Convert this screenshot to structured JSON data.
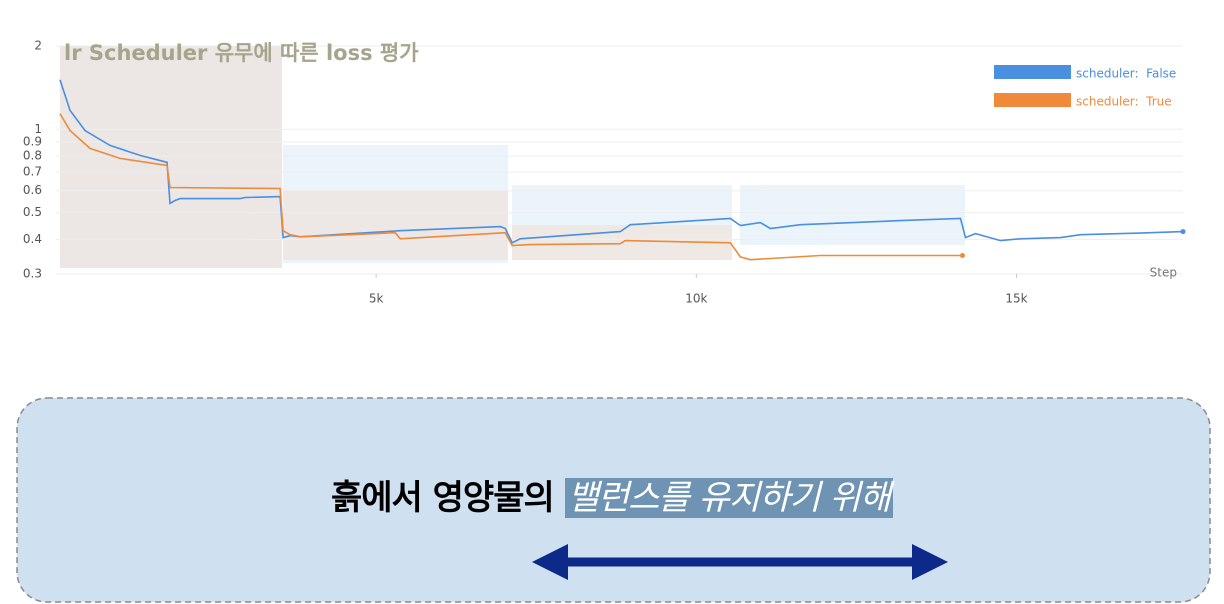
{
  "chart_data": {
    "type": "line",
    "title": "lr Scheduler 유무에 따른 loss 평가",
    "x_label": "Step",
    "xlim": [
      0,
      17600
    ],
    "xticks": [
      {
        "value": 5000,
        "label": "5k"
      },
      {
        "value": 10000,
        "label": "10k"
      },
      {
        "value": 15000,
        "label": "15k"
      }
    ],
    "ylim": [
      0.3,
      2
    ],
    "yticks": [
      0.3,
      0.4,
      0.5,
      0.6,
      0.7,
      0.8,
      0.9,
      1,
      2
    ],
    "log_y": true,
    "grid": true,
    "legend": "top-right",
    "series": [
      {
        "name": "scheduler:  False",
        "color": "#4a8fe0",
        "x": [
          63,
          219,
          453,
          844,
          1313,
          1734,
          1781,
          1859,
          1938,
          2875,
          2953,
          3500,
          3547,
          3656,
          3813,
          5375,
          6938,
          7016,
          7125,
          7250,
          8813,
          8969,
          10531,
          10688,
          11000,
          11156,
          11625,
          13188,
          14125,
          14203,
          14359,
          14750,
          15063,
          15688,
          16000,
          17094,
          17600
        ],
        "values": [
          1.51,
          1.17,
          0.99,
          0.875,
          0.805,
          0.76,
          0.54,
          0.553,
          0.562,
          0.562,
          0.567,
          0.571,
          0.406,
          0.413,
          0.409,
          0.43,
          0.445,
          0.438,
          0.389,
          0.402,
          0.427,
          0.452,
          0.476,
          0.449,
          0.46,
          0.438,
          0.452,
          0.468,
          0.476,
          0.406,
          0.42,
          0.396,
          0.402,
          0.406,
          0.416,
          0.423,
          0.427
        ]
      },
      {
        "name": "scheduler:  True",
        "color": "#ee8a3a",
        "x": [
          63,
          219,
          531,
          1000,
          1734,
          1781,
          3500,
          3547,
          3656,
          3813,
          5297,
          5375,
          7016,
          7125,
          7406,
          8813,
          8891,
          10531,
          10688,
          10844,
          11938,
          14156
        ],
        "values": [
          1.14,
          0.99,
          0.853,
          0.785,
          0.74,
          0.616,
          0.611,
          0.43,
          0.416,
          0.409,
          0.423,
          0.402,
          0.423,
          0.38,
          0.383,
          0.386,
          0.396,
          0.389,
          0.346,
          0.338,
          0.35,
          0.35
        ]
      }
    ]
  },
  "caption": {
    "text": "흙에서 영양물의",
    "highlight": "밸런스를 유지하기 위해"
  }
}
